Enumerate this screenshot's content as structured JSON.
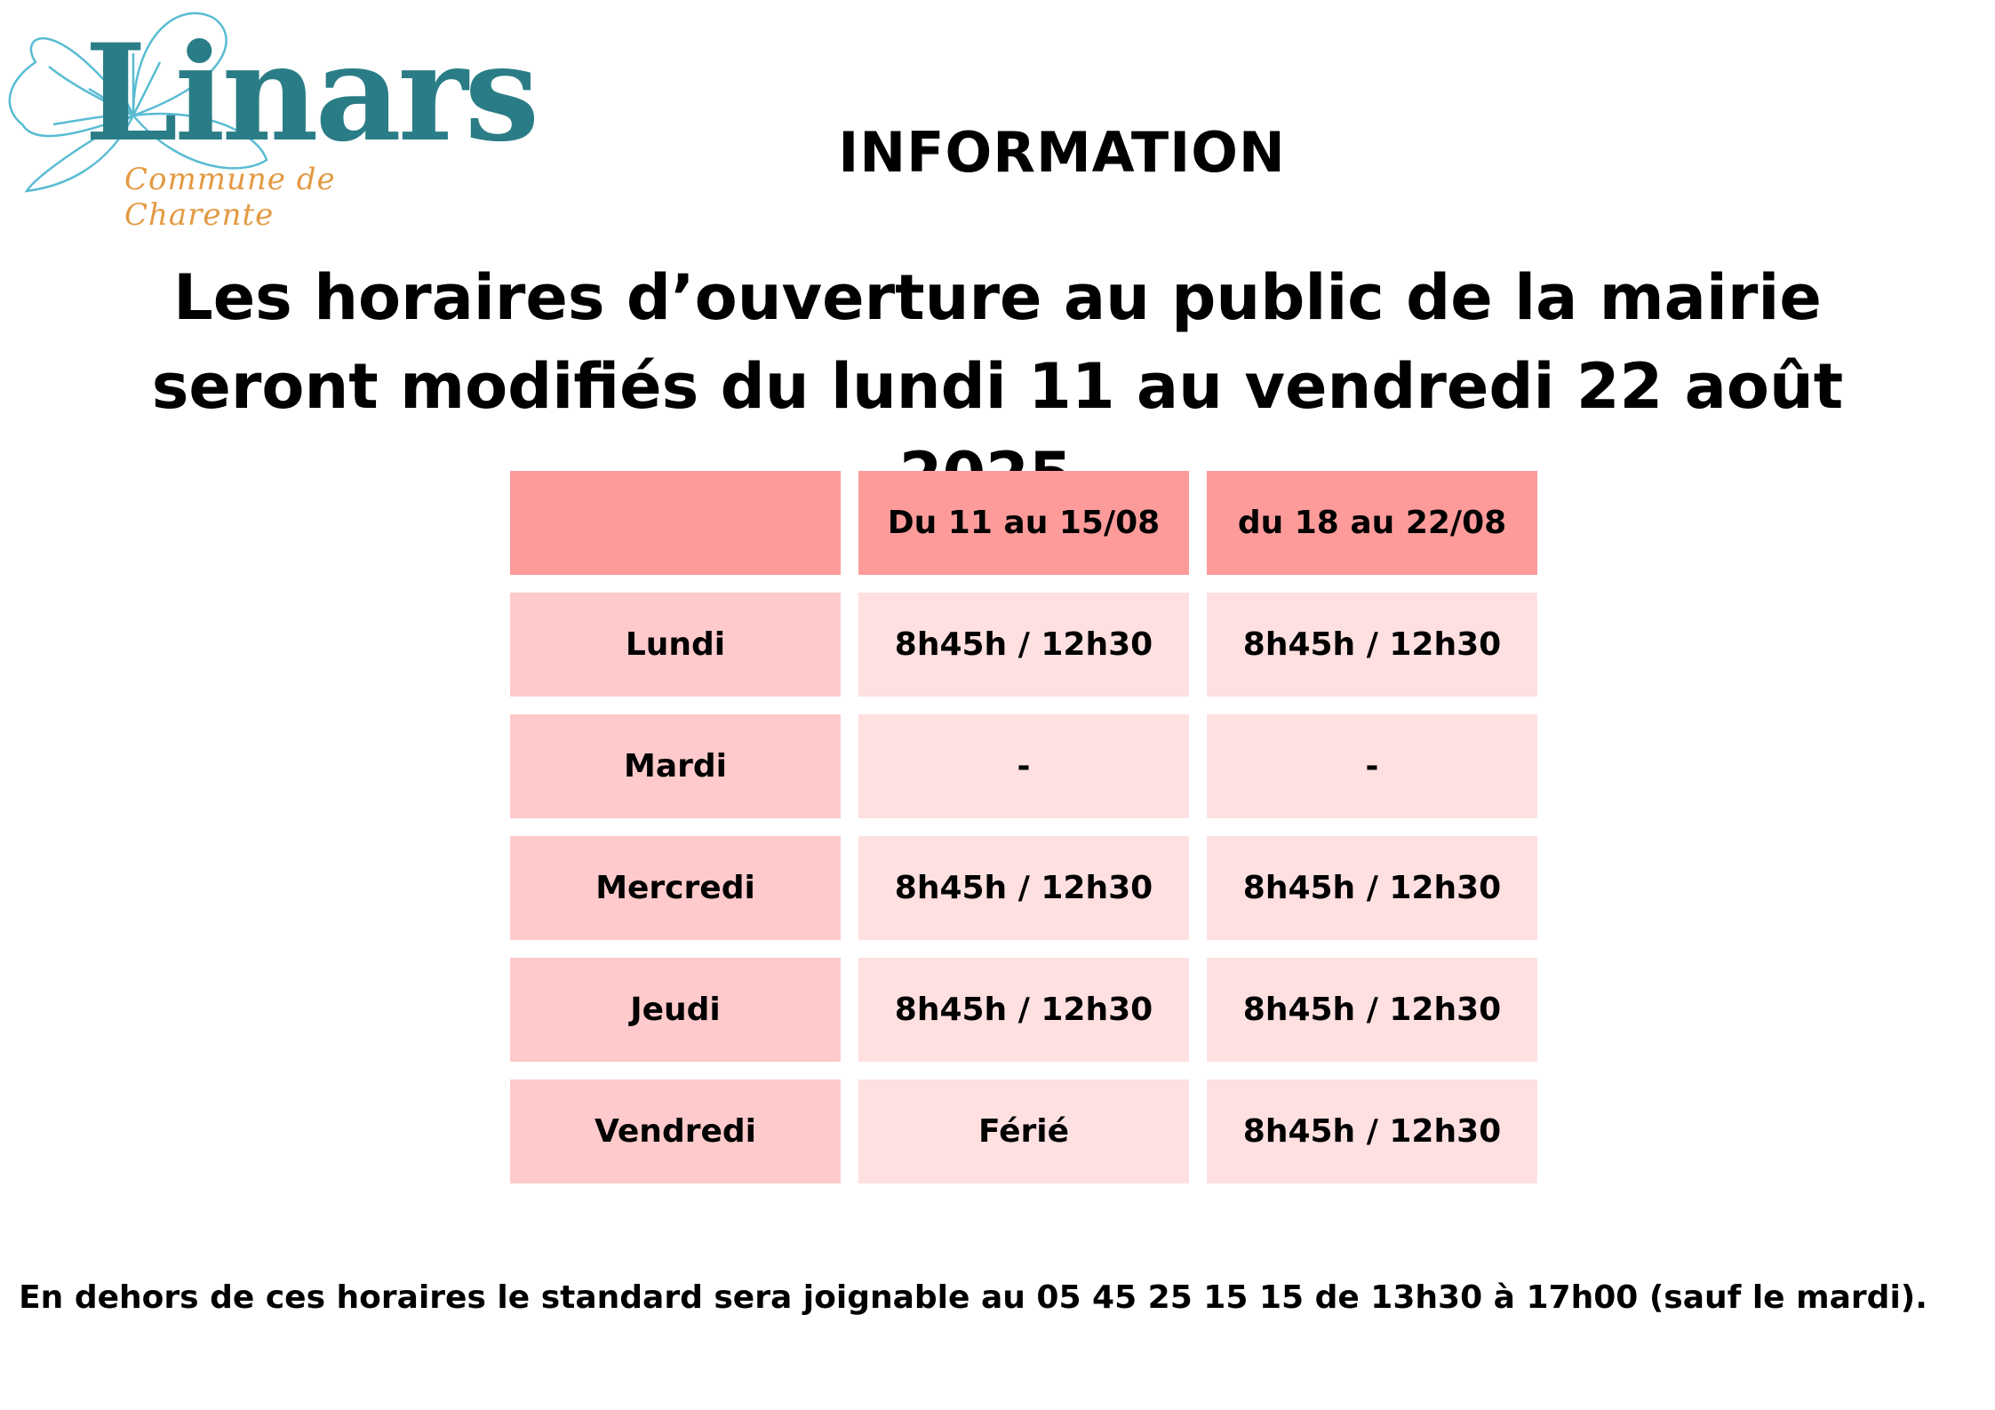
{
  "logo": {
    "name": "Linars",
    "subtitle": "Commune de Charente",
    "colors": {
      "name": "#2a7d86",
      "subtitle": "#e39a43",
      "flower": "#59bcd3"
    }
  },
  "heading": "INFORMATION",
  "lead": "Les horaires d’ouverture au public de la mairie seront modifiés du lundi 11 au vendredi 22 août 2025.",
  "table": {
    "columns": [
      "",
      "Du 11 au 15/08",
      "du 18 au 22/08"
    ],
    "rows": [
      {
        "day": "Lundi",
        "week1": "8h45h / 12h30",
        "week2": "8h45h / 12h30"
      },
      {
        "day": "Mardi",
        "week1": "-",
        "week2": "-"
      },
      {
        "day": "Mercredi",
        "week1": "8h45h / 12h30",
        "week2": "8h45h / 12h30"
      },
      {
        "day": "Jeudi",
        "week1": "8h45h / 12h30",
        "week2": "8h45h / 12h30"
      },
      {
        "day": "Vendredi",
        "week1": "Férié",
        "week2": "8h45h / 12h30"
      }
    ],
    "colors": {
      "header": "#fd9b9b",
      "day": "#fecacb",
      "value": "#ffe0e1"
    }
  },
  "footer": "En dehors de ces horaires le standard sera joignable au 05 45 25 15 15 de 13h30 à 17h00 (sauf le mardi)."
}
